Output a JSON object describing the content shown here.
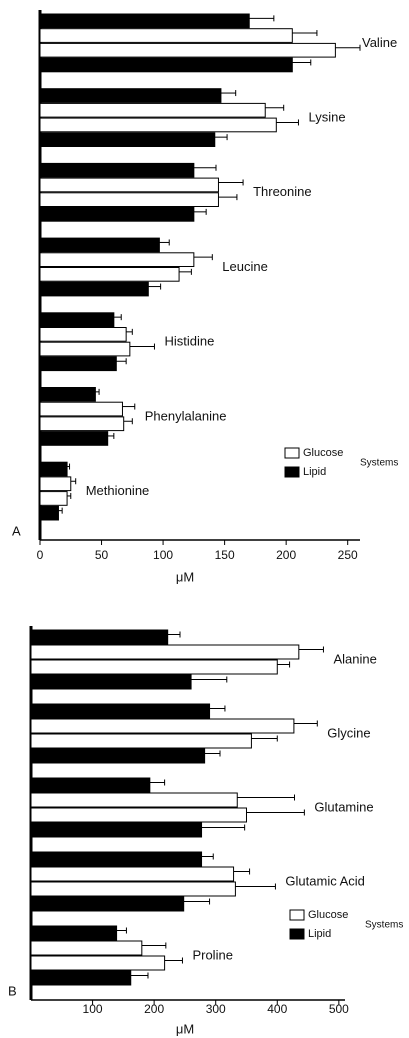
{
  "chart_data": [
    {
      "type": "barh",
      "panel": "A",
      "axis_label": "μM",
      "legend_title": "Systems",
      "categories": [
        "Valine",
        "Lysine",
        "Threonine",
        "Leucine",
        "Histidine",
        "Phenylalanine",
        "Methionine"
      ],
      "series": [
        {
          "name": "Lipid",
          "color": "#000000",
          "values": [
            170,
            147,
            125,
            97,
            60,
            45,
            22
          ],
          "errors": [
            20,
            12,
            18,
            8,
            6,
            3,
            2
          ]
        },
        {
          "name": "Glucose",
          "color": "#ffffff",
          "values": [
            205,
            183,
            145,
            125,
            70,
            67,
            25
          ],
          "errors": [
            20,
            15,
            20,
            15,
            5,
            10,
            4
          ]
        },
        {
          "color": "#ffffff",
          "values": [
            240,
            192,
            145,
            113,
            73,
            68,
            22
          ],
          "errors": [
            20,
            18,
            15,
            10,
            20,
            7,
            3
          ]
        },
        {
          "color": "#000000",
          "values": [
            205,
            142,
            125,
            88,
            62,
            55,
            15
          ],
          "errors": [
            15,
            10,
            10,
            10,
            8,
            5,
            3
          ]
        }
      ],
      "xlim": [
        0,
        260
      ],
      "xticks": [
        0,
        50,
        100,
        150,
        200,
        250
      ]
    },
    {
      "type": "barh",
      "panel": "B",
      "axis_label": "μM",
      "legend_title": "Systems",
      "categories": [
        "Alanine",
        "Glycine",
        "Glutamine",
        "Glutamic Acid",
        "Proline"
      ],
      "series": [
        {
          "name": "Lipid",
          "color": "#000000",
          "values": [
            222,
            290,
            193,
            277,
            139
          ],
          "errors": [
            20,
            25,
            24,
            19,
            16
          ]
        },
        {
          "name": "Glucose",
          "color": "#ffffff",
          "values": [
            435,
            427,
            335,
            329,
            180
          ],
          "errors": [
            40,
            38,
            93,
            26,
            39
          ]
        },
        {
          "color": "#ffffff",
          "values": [
            400,
            358,
            350,
            332,
            217
          ],
          "errors": [
            20,
            42,
            94,
            65,
            29
          ]
        },
        {
          "color": "#000000",
          "values": [
            260,
            282,
            277,
            248,
            162
          ],
          "errors": [
            58,
            25,
            70,
            42,
            28
          ]
        }
      ],
      "xlim": [
        0,
        510
      ],
      "xticks": [
        100,
        200,
        300,
        400,
        500
      ]
    }
  ]
}
